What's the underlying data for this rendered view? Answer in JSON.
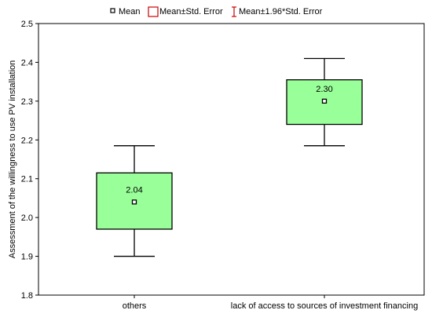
{
  "chart_data": {
    "type": "box",
    "title": "",
    "xlabel": "",
    "ylabel": "Assessment of the willingness to use PV installation",
    "ylim": [
      1.8,
      2.5
    ],
    "yticks": [
      "1.8",
      "1.9",
      "2.0",
      "2.1",
      "2.2",
      "2.3",
      "2.4",
      "2.5"
    ],
    "categories": [
      "others",
      "lack of access to sources of investment financing"
    ],
    "mean": [
      2.04,
      2.3
    ],
    "mean_labels": [
      "2.04",
      "2.30"
    ],
    "box_low": [
      1.97,
      2.24
    ],
    "box_high": [
      2.115,
      2.355
    ],
    "whisker_low": [
      1.9,
      2.185
    ],
    "whisker_high": [
      2.185,
      2.41
    ],
    "legend": [
      "Mean",
      "Mean±Std. Error",
      "Mean±1.96*Std. Error"
    ],
    "legend_position": "top-center",
    "grid": false,
    "colors": {
      "box_fill": "#99ff99",
      "box_stroke": "#000000",
      "legend_box_stroke": "#cc0000",
      "legend_whisker_stroke": "#cc0000",
      "axis": "#000000"
    }
  }
}
